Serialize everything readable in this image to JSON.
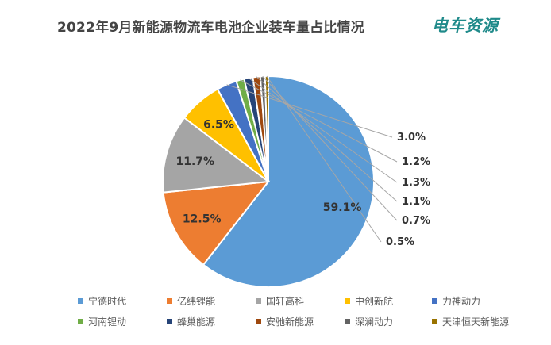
{
  "header": {
    "title": "2022年9月新能源物流车电池企业装车量占比情况",
    "logo_text": "电车资源"
  },
  "chart_data": {
    "type": "pie",
    "title": "2022年9月新能源物流车电池企业装车量占比情况",
    "start_angle_deg": 0,
    "direction": "clockwise",
    "unit": "%",
    "categories": [
      "宁德时代",
      "亿纬锂能",
      "国轩高科",
      "中创新航",
      "力神动力",
      "河南锂动",
      "蜂巢能源",
      "安驰新能源",
      "深澜动力",
      "天津恒天新能源"
    ],
    "values": [
      59.1,
      12.5,
      11.7,
      6.5,
      3.0,
      1.2,
      1.3,
      1.1,
      0.7,
      0.5
    ],
    "labels": [
      "59.1%",
      "12.5%",
      "11.7%",
      "6.5%",
      "3.0%",
      "1.2%",
      "1.3%",
      "1.1%",
      "0.7%",
      "0.5%"
    ],
    "colors": [
      "#5b9bd5",
      "#ed7d31",
      "#a5a5a5",
      "#ffc000",
      "#4472c4",
      "#70ad47",
      "#264478",
      "#9e480e",
      "#636363",
      "#997300"
    ],
    "legend": {
      "position": "bottom",
      "columns": 5
    }
  }
}
